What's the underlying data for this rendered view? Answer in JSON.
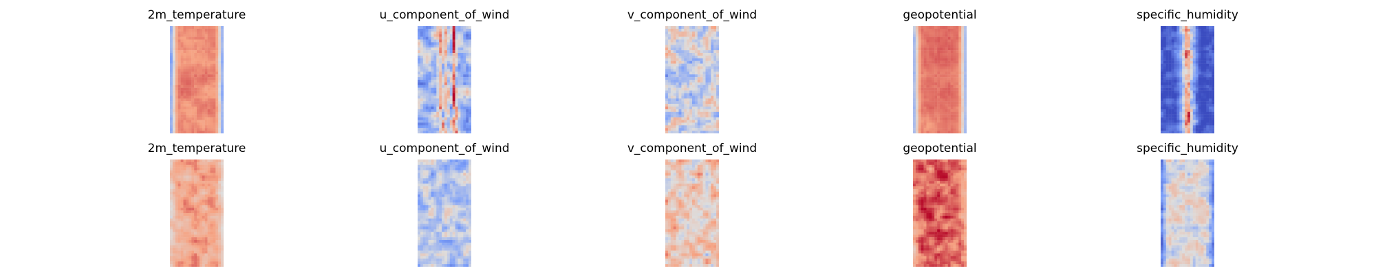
{
  "chart_data": [
    {
      "type": "heatmap",
      "row": 1,
      "title": "2m_temperature",
      "colormap": "coolwarm",
      "pattern": "central warm band, cool edges",
      "grid": false,
      "axes": "off",
      "seed": 11,
      "base": 0.78,
      "edge": 0.22,
      "edge_profile": "band",
      "noise": 0.06,
      "smooth_scale": 6
    },
    {
      "type": "heatmap",
      "row": 1,
      "title": "u_component_of_wind",
      "colormap": "coolwarm",
      "pattern": "vertical red streaks on blue background",
      "grid": false,
      "axes": "off",
      "seed": 23,
      "base": 0.38,
      "edge": 0.38,
      "edge_profile": "flat",
      "noise": 0.2,
      "smooth_scale": 3,
      "streaks": true
    },
    {
      "type": "heatmap",
      "row": 1,
      "title": "v_component_of_wind",
      "colormap": "coolwarm",
      "pattern": "mixed small-scale eddies near zero",
      "grid": false,
      "axes": "off",
      "seed": 37,
      "base": 0.48,
      "edge": 0.48,
      "edge_profile": "flat",
      "noise": 0.22,
      "smooth_scale": 2.5
    },
    {
      "type": "heatmap",
      "row": 1,
      "title": "geopotential",
      "colormap": "coolwarm",
      "pattern": "strong central high, cool/neutral edges",
      "grid": false,
      "axes": "off",
      "seed": 41,
      "base": 0.82,
      "edge": 0.3,
      "edge_profile": "band",
      "noise": 0.05,
      "smooth_scale": 6
    },
    {
      "type": "heatmap",
      "row": 1,
      "title": "specific_humidity",
      "colormap": "coolwarm",
      "pattern": "narrow red core on deep blue background",
      "grid": false,
      "axes": "off",
      "seed": 53,
      "base": 0.85,
      "edge": 0.04,
      "edge_profile": "narrow",
      "noise": 0.12,
      "smooth_scale": 2.5
    },
    {
      "type": "heatmap",
      "row": 2,
      "title": "2m_temperature",
      "colormap": "coolwarm",
      "pattern": "warm mottled field with cool strips at sides",
      "grid": false,
      "axes": "off",
      "seed": 61,
      "base": 0.72,
      "edge": 0.55,
      "edge_profile": "band",
      "noise": 0.1,
      "smooth_scale": 3
    },
    {
      "type": "heatmap",
      "row": 2,
      "title": "u_component_of_wind",
      "colormap": "coolwarm",
      "pattern": "mostly light blue with scattered pale red",
      "grid": false,
      "axes": "off",
      "seed": 73,
      "base": 0.4,
      "edge": 0.4,
      "edge_profile": "flat",
      "noise": 0.16,
      "smooth_scale": 2.5
    },
    {
      "type": "heatmap",
      "row": 2,
      "title": "v_component_of_wind",
      "colormap": "coolwarm",
      "pattern": "mostly pale red with scattered blue",
      "grid": false,
      "axes": "off",
      "seed": 89,
      "base": 0.6,
      "edge": 0.6,
      "edge_profile": "flat",
      "noise": 0.18,
      "smooth_scale": 2.5
    },
    {
      "type": "heatmap",
      "row": 2,
      "title": "geopotential",
      "colormap": "coolwarm",
      "pattern": "strong red field with a few blue patches",
      "grid": false,
      "axes": "off",
      "seed": 97,
      "base": 0.86,
      "edge": 0.72,
      "edge_profile": "band",
      "noise": 0.12,
      "smooth_scale": 3
    },
    {
      "type": "heatmap",
      "row": 2,
      "title": "specific_humidity",
      "colormap": "coolwarm",
      "pattern": "blue field with light center and small red spots",
      "grid": false,
      "axes": "off",
      "seed": 103,
      "base": 0.5,
      "edge": 0.16,
      "edge_profile": "band",
      "noise": 0.14,
      "smooth_scale": 2.5
    }
  ]
}
